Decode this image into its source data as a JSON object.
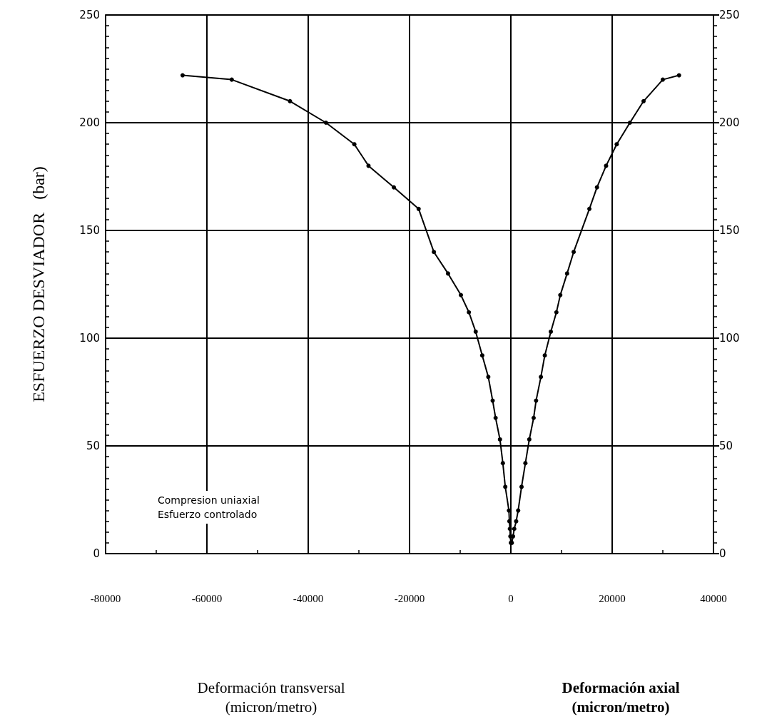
{
  "chart_data": {
    "type": "line",
    "ylabel": "ESFUERZO DESVIADOR   (bar)",
    "annotations": [
      "Compresion uniaxial\nEsfuerzo controlado",
      "Deformación axial\n(micron/metro)",
      "Deformación transversal\n(micron/metro)"
    ],
    "series": [
      {
        "color": "#000000",
        "x": [
          0,
          -100,
          -190,
          -290,
          -380,
          -1100,
          -1580,
          -2150,
          -3010,
          -3590,
          -4450,
          -5650,
          -6940,
          -8280,
          -9860,
          -12400,
          -15200,
          -18200,
          -23100,
          -28100,
          -30900,
          -36500,
          -43600,
          -55100,
          -64800
        ],
        "values": [
          5,
          8,
          11.5,
          15,
          20,
          31,
          42,
          53,
          63,
          71,
          82,
          92,
          103,
          112,
          120,
          130,
          140,
          160,
          170,
          180,
          190,
          200,
          210,
          220,
          222
        ]
      },
      {
        "color": "#000000",
        "x": [
          190,
          430,
          670,
          1050,
          1440,
          2110,
          2870,
          3640,
          4500,
          4980,
          5930,
          6700,
          7890,
          8990,
          9760,
          11100,
          12400,
          15500,
          17000,
          18800,
          20900,
          23500,
          26200,
          30000,
          33200
        ],
        "values": [
          5,
          8,
          11.5,
          15,
          20,
          31,
          42,
          53,
          63,
          71,
          82,
          92,
          103,
          112,
          120,
          130,
          140,
          160,
          170,
          180,
          190,
          200,
          210,
          220,
          222
        ]
      }
    ],
    "xlim": [
      -80000,
      40000
    ],
    "xticks": [
      -80000,
      -60000,
      -40000,
      -20000,
      0,
      20000,
      40000
    ],
    "ylim": [
      0,
      250
    ],
    "yticks": [
      0,
      50,
      100,
      150,
      200,
      250
    ],
    "y2lim": [
      0,
      250
    ],
    "y2ticks": [
      0,
      50,
      100,
      150,
      200,
      250
    ],
    "grid": true,
    "marker": "circle",
    "line_style": "solid"
  }
}
